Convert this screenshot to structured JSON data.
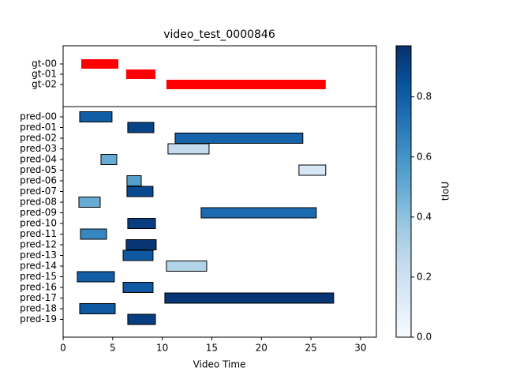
{
  "chart_data": {
    "type": "segment-timeline",
    "title": "video_test_0000846",
    "xlabel": "Video Time",
    "colorbar_label": "tIoU",
    "colormap": "Blues",
    "gt_color": "#ff0000",
    "xlim": [
      0,
      31.6
    ],
    "xticks": [
      0,
      5,
      10,
      15,
      20,
      25,
      30
    ],
    "clim": [
      0,
      0.97
    ],
    "cticks": [
      {
        "value": 0,
        "label": "0.0"
      },
      {
        "value": 0.2,
        "label": "0.2"
      },
      {
        "value": 0.4,
        "label": "0.4"
      },
      {
        "value": 0.6,
        "label": "0.6"
      },
      {
        "value": 0.8,
        "label": "0.8"
      }
    ],
    "gt": {
      "labels": [
        "gt-00",
        "gt-01",
        "gt-02"
      ],
      "starts": [
        1.83,
        6.36,
        10.42
      ],
      "ends": [
        5.57,
        9.31,
        26.49
      ]
    },
    "predictions": {
      "labels": [
        "pred-00",
        "pred-01",
        "pred-02",
        "pred-03",
        "pred-04",
        "pred-05",
        "pred-06",
        "pred-07",
        "pred-08",
        "pred-09",
        "pred-10",
        "pred-11",
        "pred-12",
        "pred-13",
        "pred-14",
        "pred-15",
        "pred-16",
        "pred-17",
        "pred-18",
        "pred-19"
      ],
      "starts": [
        1.67,
        6.52,
        11.3,
        10.58,
        3.82,
        23.79,
        6.44,
        6.44,
        1.59,
        13.92,
        6.52,
        1.75,
        6.36,
        6.05,
        10.42,
        1.43,
        6.05,
        10.26,
        1.67,
        6.52
      ],
      "ends": [
        4.93,
        9.15,
        24.18,
        14.72,
        5.41,
        26.49,
        7.88,
        9.07,
        3.74,
        25.54,
        9.31,
        4.38,
        9.39,
        9.07,
        14.48,
        5.17,
        9.07,
        27.29,
        5.25,
        9.31
      ],
      "tiou": [
        0.8,
        0.9,
        0.78,
        0.25,
        0.5,
        0.15,
        0.55,
        0.88,
        0.5,
        0.75,
        0.92,
        0.65,
        0.95,
        0.82,
        0.3,
        0.8,
        0.82,
        0.95,
        0.82,
        0.92
      ]
    }
  }
}
